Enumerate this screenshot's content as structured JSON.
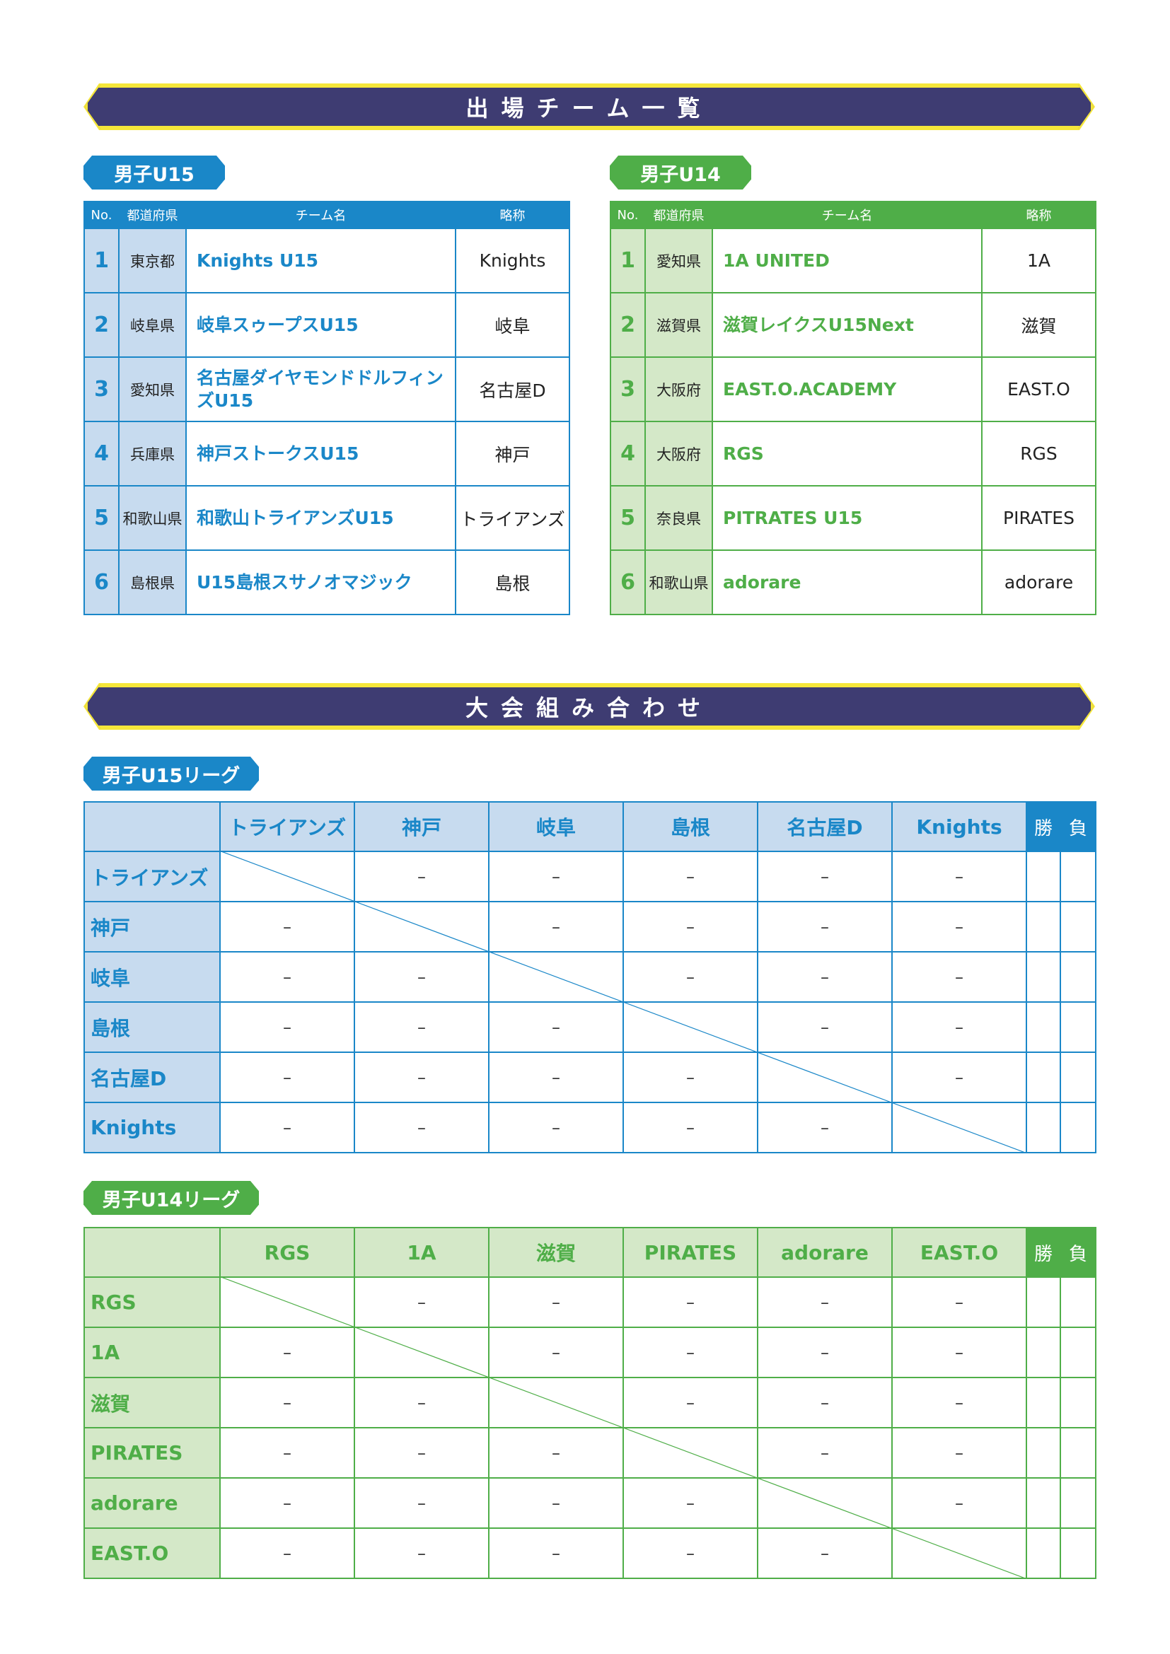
{
  "section1_title": "出場チーム一覧",
  "section2_title": "大会組み合わせ",
  "lists": [
    {
      "label": "男子U15",
      "headers": [
        "No.",
        "都道府県",
        "チーム名",
        "略称"
      ],
      "color": "#1a87c8",
      "rows": [
        [
          "1",
          "東京都",
          "Knights U15",
          "Knights"
        ],
        [
          "2",
          "岐阜県",
          "岐阜スゥープスU15",
          "岐阜"
        ],
        [
          "3",
          "愛知県",
          "名古屋ダイヤモンドドルフィンズU15",
          "名古屋D"
        ],
        [
          "4",
          "兵庫県",
          "神戸ストークスU15",
          "神戸"
        ],
        [
          "5",
          "和歌山県",
          "和歌山トライアンズU15",
          "トライアンズ"
        ],
        [
          "6",
          "島根県",
          "U15島根スサノオマジック",
          "島根"
        ]
      ]
    },
    {
      "label": "男子U14",
      "headers": [
        "No.",
        "都道府県",
        "チーム名",
        "略称"
      ],
      "color": "#4fae48",
      "rows": [
        [
          "1",
          "愛知県",
          "1A UNITED",
          "1A"
        ],
        [
          "2",
          "滋賀県",
          "滋賀レイクスU15Next",
          "滋賀"
        ],
        [
          "3",
          "大阪府",
          "EAST.O.ACADEMY",
          "EAST.O"
        ],
        [
          "4",
          "大阪府",
          "RGS",
          "RGS"
        ],
        [
          "5",
          "奈良県",
          "PITRATES U15",
          "PIRATES"
        ],
        [
          "6",
          "和歌山県",
          "adorare",
          "adorare"
        ]
      ]
    }
  ],
  "leagues": [
    {
      "label": "男子U15リーグ",
      "teams": [
        "トライアンズ",
        "神戸",
        "岐阜",
        "島根",
        "名古屋D",
        "Knights"
      ],
      "win": "勝",
      "loss": "負",
      "empty": "–",
      "color": "#1a87c8"
    },
    {
      "label": "男子U14リーグ",
      "teams": [
        "RGS",
        "1A",
        "滋賀",
        "PIRATES",
        "adorare",
        "EAST.O"
      ],
      "win": "勝",
      "loss": "負",
      "empty": "–",
      "color": "#4fae48"
    }
  ]
}
